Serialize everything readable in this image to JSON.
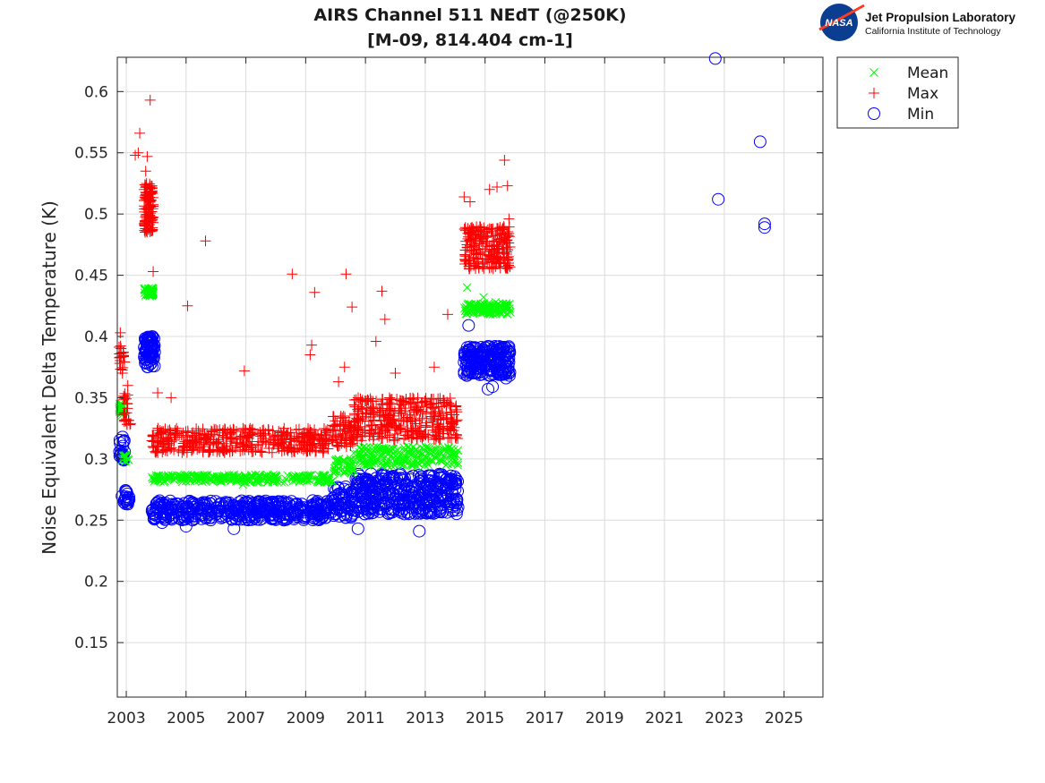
{
  "logo": {
    "badge_text": "NASA",
    "title": "Jet Propulsion Laboratory",
    "subtitle": "California Institute of Technology"
  },
  "chart_data": {
    "type": "scatter",
    "title": "AIRS Channel 511 NEdT (@250K)",
    "subtitle": "[M-09, 814.404 cm-1]",
    "xlabel": "",
    "ylabel": "Noise Equivalent Delta Temperature (K)",
    "xlim": [
      2002.7,
      2026.3
    ],
    "ylim": [
      0.1055,
      0.628
    ],
    "grid": true,
    "legend_position": "outside-top-right",
    "xticks": [
      2003,
      2005,
      2007,
      2009,
      2011,
      2013,
      2015,
      2017,
      2019,
      2021,
      2023,
      2025
    ],
    "xtick_labels": [
      "2003",
      "2005",
      "2007",
      "2009",
      "2011",
      "2013",
      "2015",
      "2017",
      "2019",
      "2021",
      "2023",
      "2025"
    ],
    "yticks": [
      0.15,
      0.2,
      0.25,
      0.3,
      0.35,
      0.4,
      0.45,
      0.5,
      0.55,
      0.6
    ],
    "ytick_labels": [
      "0.15",
      "0.2",
      "0.25",
      "0.3",
      "0.35",
      "0.4",
      "0.45",
      "0.5",
      "0.55",
      "0.6"
    ],
    "series": [
      {
        "name": "Mean",
        "marker": "x",
        "color": "#00ff00",
        "segments": [
          {
            "x0": 2002.75,
            "x1": 2002.95,
            "ymin": 0.335,
            "ymax": 0.345,
            "n": 20
          },
          {
            "x0": 2002.85,
            "x1": 2003.1,
            "ymin": 0.297,
            "ymax": 0.303,
            "n": 12
          },
          {
            "x0": 2003.6,
            "x1": 2003.9,
            "ymin": 0.433,
            "ymax": 0.44,
            "n": 60
          },
          {
            "x0": 2003.85,
            "x1": 2009.9,
            "ymin": 0.281,
            "ymax": 0.287,
            "n": 260
          },
          {
            "x0": 2009.9,
            "x1": 2010.6,
            "ymin": 0.288,
            "ymax": 0.3,
            "n": 40
          },
          {
            "x0": 2010.6,
            "x1": 2014.1,
            "ymin": 0.294,
            "ymax": 0.31,
            "n": 200
          },
          {
            "x0": 2014.3,
            "x1": 2015.85,
            "ymin": 0.418,
            "ymax": 0.427,
            "n": 110
          }
        ],
        "outliers": [
          [
            2014.4,
            0.44
          ],
          [
            2014.95,
            0.432
          ],
          [
            2015.35,
            0.428
          ],
          [
            2006.9,
            0.279
          ]
        ]
      },
      {
        "name": "Max",
        "marker": "+",
        "color": "#ff0000",
        "segments": [
          {
            "x0": 2002.75,
            "x1": 2002.95,
            "ymin": 0.37,
            "ymax": 0.395,
            "n": 20
          },
          {
            "x0": 2002.9,
            "x1": 2003.15,
            "ymin": 0.325,
            "ymax": 0.355,
            "n": 25
          },
          {
            "x0": 2003.6,
            "x1": 2003.9,
            "ymin": 0.485,
            "ymax": 0.525,
            "n": 120
          },
          {
            "x0": 2003.85,
            "x1": 2009.9,
            "ymin": 0.305,
            "ymax": 0.325,
            "n": 420
          },
          {
            "x0": 2009.9,
            "x1": 2010.6,
            "ymin": 0.31,
            "ymax": 0.335,
            "n": 60
          },
          {
            "x0": 2010.6,
            "x1": 2014.1,
            "ymin": 0.315,
            "ymax": 0.35,
            "n": 360
          },
          {
            "x0": 2014.3,
            "x1": 2015.85,
            "ymin": 0.455,
            "ymax": 0.49,
            "n": 220
          }
        ],
        "outliers": [
          [
            2003.8,
            0.593
          ],
          [
            2003.45,
            0.566
          ],
          [
            2003.3,
            0.548
          ],
          [
            2003.4,
            0.55
          ],
          [
            2003.7,
            0.547
          ],
          [
            2003.65,
            0.535
          ],
          [
            2003.9,
            0.453
          ],
          [
            2004.05,
            0.354
          ],
          [
            2004.5,
            0.35
          ],
          [
            2005.05,
            0.425
          ],
          [
            2005.65,
            0.478
          ],
          [
            2006.95,
            0.372
          ],
          [
            2008.55,
            0.451
          ],
          [
            2009.3,
            0.436
          ],
          [
            2009.2,
            0.393
          ],
          [
            2009.15,
            0.385
          ],
          [
            2010.35,
            0.451
          ],
          [
            2010.55,
            0.424
          ],
          [
            2010.1,
            0.363
          ],
          [
            2010.3,
            0.375
          ],
          [
            2011.55,
            0.437
          ],
          [
            2011.65,
            0.414
          ],
          [
            2011.35,
            0.396
          ],
          [
            2012.0,
            0.37
          ],
          [
            2013.3,
            0.375
          ],
          [
            2013.75,
            0.418
          ],
          [
            2014.3,
            0.514
          ],
          [
            2014.5,
            0.51
          ],
          [
            2015.15,
            0.52
          ],
          [
            2015.4,
            0.522
          ],
          [
            2015.65,
            0.544
          ],
          [
            2015.75,
            0.523
          ],
          [
            2015.8,
            0.496
          ],
          [
            2002.8,
            0.403
          ],
          [
            2003.05,
            0.36
          ]
        ]
      },
      {
        "name": "Min",
        "marker": "o",
        "color": "#0000ff",
        "segments": [
          {
            "x0": 2002.75,
            "x1": 2002.95,
            "ymin": 0.295,
            "ymax": 0.318,
            "n": 20
          },
          {
            "x0": 2002.85,
            "x1": 2003.15,
            "ymin": 0.263,
            "ymax": 0.275,
            "n": 20
          },
          {
            "x0": 2003.6,
            "x1": 2003.95,
            "ymin": 0.375,
            "ymax": 0.4,
            "n": 80
          },
          {
            "x0": 2003.85,
            "x1": 2009.9,
            "ymin": 0.25,
            "ymax": 0.266,
            "n": 420
          },
          {
            "x0": 2009.9,
            "x1": 2010.6,
            "ymin": 0.252,
            "ymax": 0.278,
            "n": 60
          },
          {
            "x0": 2010.6,
            "x1": 2014.1,
            "ymin": 0.255,
            "ymax": 0.288,
            "n": 380
          },
          {
            "x0": 2014.3,
            "x1": 2015.85,
            "ymin": 0.368,
            "ymax": 0.392,
            "n": 200
          }
        ],
        "outliers": [
          [
            2006.6,
            0.243
          ],
          [
            2010.75,
            0.243
          ],
          [
            2012.8,
            0.241
          ],
          [
            2004.2,
            0.248
          ],
          [
            2005.0,
            0.245
          ],
          [
            2014.45,
            0.409
          ],
          [
            2015.1,
            0.357
          ],
          [
            2015.25,
            0.359
          ],
          [
            2015.7,
            0.366
          ],
          [
            2022.7,
            0.627
          ],
          [
            2022.8,
            0.512
          ],
          [
            2024.2,
            0.559
          ],
          [
            2024.35,
            0.492
          ],
          [
            2024.35,
            0.489
          ]
        ]
      }
    ]
  }
}
